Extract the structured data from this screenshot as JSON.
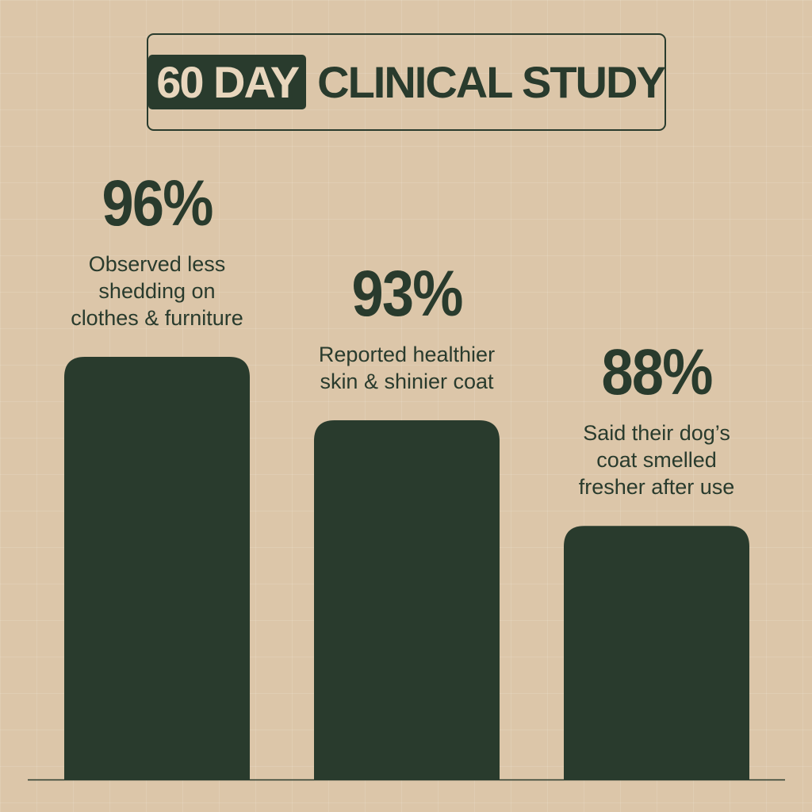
{
  "chart_data": {
    "type": "bar",
    "title_highlight": "60 DAY",
    "title": "CLINICAL STUDY",
    "categories": [
      "Observed less\nshedding on\nclothes & furniture",
      "Reported healthier\nskin & shinier coat",
      "Said their dog’s\ncoat smelled\nfresher after use"
    ],
    "values": [
      96,
      93,
      88
    ],
    "value_labels": [
      "96%",
      "93%",
      "88%"
    ],
    "color": "#293b2d",
    "ylim": [
      76,
      96
    ]
  }
}
